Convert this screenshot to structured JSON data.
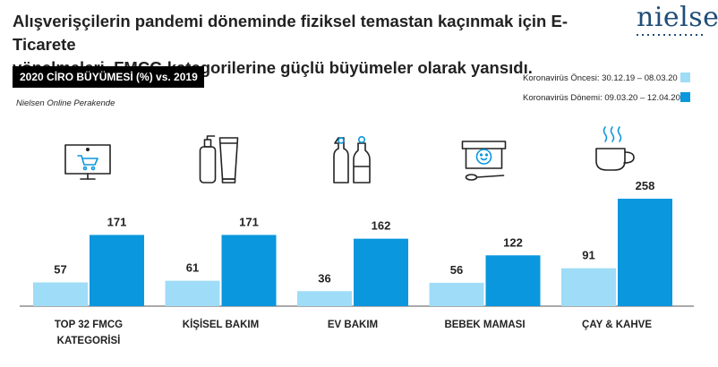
{
  "header": {
    "title_line1": "Alışverişçilerin pandemi döneminde fiziksel temastan kaçınmak için E-Ticarete",
    "title_line2": "yönelmeleri, FMCG kategorilerine güçlü büyümeler olarak yansıdı.",
    "logo": "nielsen"
  },
  "badge": "2020 CİRO BÜYÜMESİ (%) vs. 2019",
  "source": "Nielsen Online Perakende",
  "colors": {
    "before": "#9fdcf7",
    "during": "#0a97dd",
    "logo": "#1f4e79",
    "axis": "#555555"
  },
  "chart_data": {
    "type": "bar",
    "categories": [
      "TOP 32 FMCG KATEGORİSİ",
      "KİŞİSEL BAKIM",
      "EV BAKIM",
      "BEBEK MAMASI",
      "ÇAY & KAHVE"
    ],
    "category_lines": [
      [
        "TOP 32 FMCG",
        "KATEGORİSİ"
      ],
      [
        "KİŞİSEL BAKIM"
      ],
      [
        "EV BAKIM"
      ],
      [
        "BEBEK MAMASI"
      ],
      [
        "ÇAY & KAHVE"
      ]
    ],
    "category_icons": [
      "shopping-cart-screen-icon",
      "personal-care-bottles-icon",
      "cleaning-bottles-icon",
      "baby-food-jar-icon",
      "coffee-cup-icon"
    ],
    "series": [
      {
        "name": "Koronavirüs Öncesi: 30.12.19 – 08.03.20",
        "values": [
          57,
          61,
          36,
          56,
          91
        ]
      },
      {
        "name": "Koronavirüs Dönemi: 09.03.20 – 12.04.20",
        "values": [
          171,
          171,
          162,
          122,
          258
        ]
      }
    ],
    "ylim": [
      0,
      300
    ],
    "grid": false,
    "legend_position": "top-right"
  }
}
